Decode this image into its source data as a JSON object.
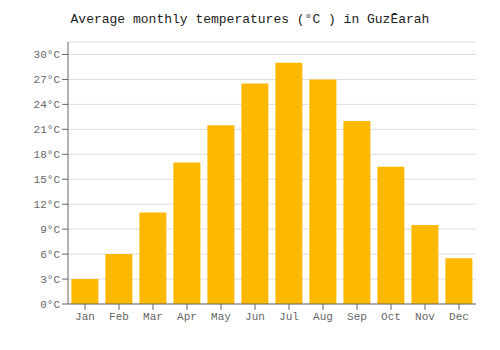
{
  "chart_data": {
    "type": "bar",
    "title": "Average monthly temperatures (°C ) in GuzĒarah",
    "categories": [
      "Jan",
      "Feb",
      "Mar",
      "Apr",
      "May",
      "Jun",
      "Jul",
      "Aug",
      "Sep",
      "Oct",
      "Nov",
      "Dec"
    ],
    "values": [
      3.0,
      6.0,
      11.0,
      17.0,
      21.5,
      26.5,
      29.0,
      27.0,
      22.0,
      16.5,
      9.5,
      5.5
    ],
    "color": "#FFB800",
    "ylim": [
      0,
      31.5
    ],
    "yticks": [
      {
        "value": 0,
        "label": "0°C"
      },
      {
        "value": 3,
        "label": "3°C"
      },
      {
        "value": 6,
        "label": "6°C"
      },
      {
        "value": 9,
        "label": "9°C"
      },
      {
        "value": 12,
        "label": "12°C"
      },
      {
        "value": 15,
        "label": "15°C"
      },
      {
        "value": 18,
        "label": "18°C"
      },
      {
        "value": 21,
        "label": "21°C"
      },
      {
        "value": 24,
        "label": "24°C"
      },
      {
        "value": 27,
        "label": "27°C"
      },
      {
        "value": 30,
        "label": "30°C"
      }
    ],
    "grid": true
  }
}
